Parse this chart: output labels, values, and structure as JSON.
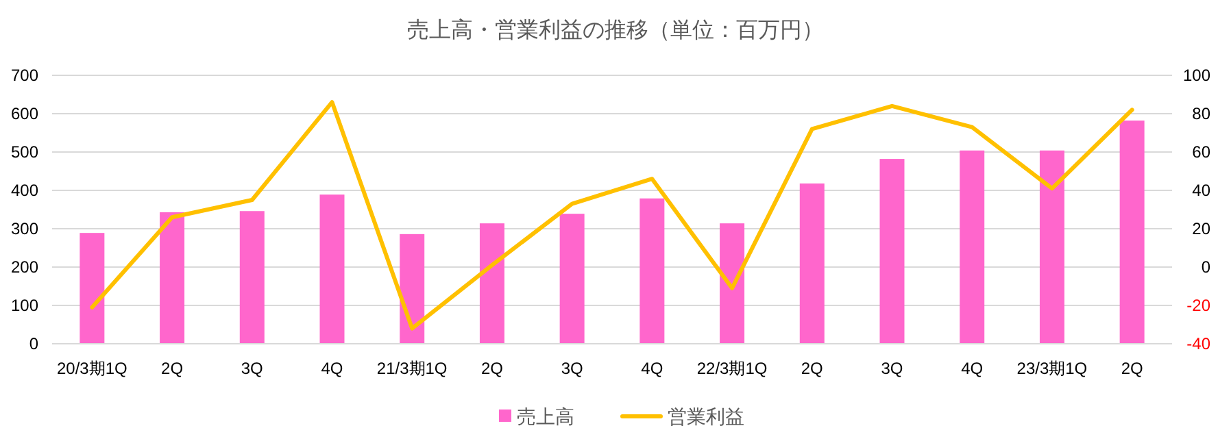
{
  "chart_data": {
    "type": "bar",
    "title": "売上高・営業利益の推移（単位：百万円）",
    "categories": [
      "20/3期1Q",
      "2Q",
      "3Q",
      "4Q",
      "21/3期1Q",
      "2Q",
      "3Q",
      "4Q",
      "22/3期1Q",
      "2Q",
      "3Q",
      "4Q",
      "23/3期1Q",
      "2Q"
    ],
    "series": [
      {
        "name": "売上高",
        "color": "#ff66cc",
        "values": [
          289,
          343,
          346,
          389,
          286,
          314,
          339,
          379,
          314,
          418,
          482,
          504,
          504,
          582
        ]
      },
      {
        "name": "営業利益",
        "type": "line",
        "axis": "y2",
        "color": "#ffc000",
        "values": [
          -21,
          26,
          35,
          86,
          -32,
          1,
          33,
          46,
          -11,
          72,
          84,
          73,
          41,
          82
        ]
      }
    ],
    "ylim": [
      0,
      700
    ],
    "yticks": [
      0,
      100,
      200,
      300,
      400,
      500,
      600,
      700
    ],
    "y2lim": [
      -40,
      100
    ],
    "y2ticks": [
      -40,
      -20,
      0,
      20,
      40,
      60,
      80,
      100
    ],
    "grid": "y",
    "legend": "bottom",
    "marker": "none",
    "line_style": "solid"
  }
}
